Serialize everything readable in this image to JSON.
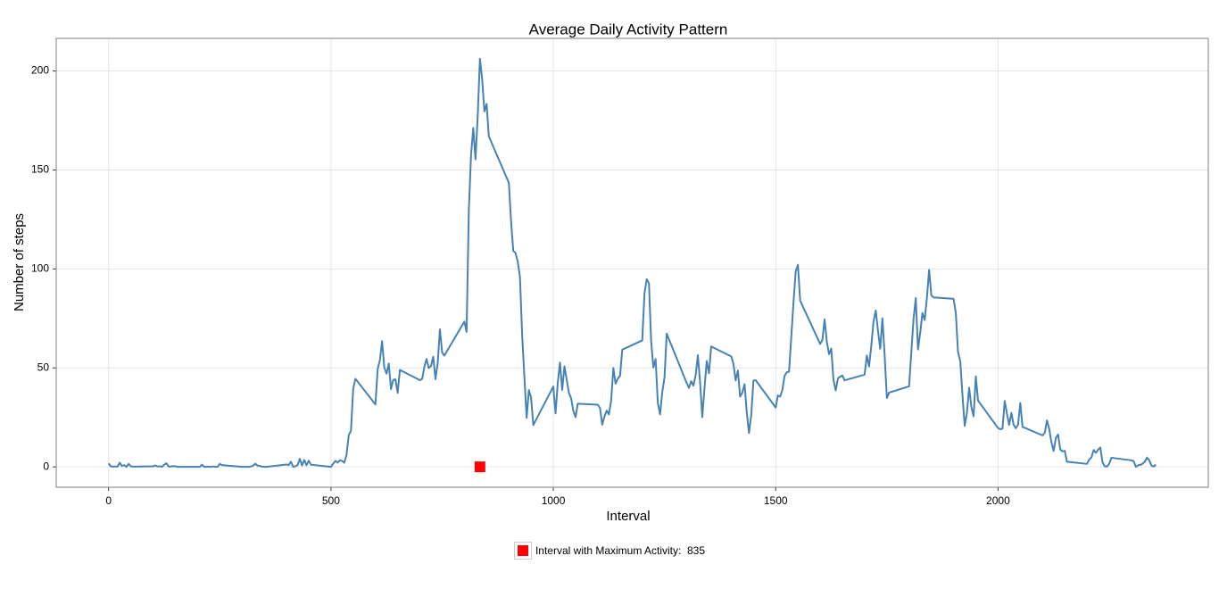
{
  "chart_data": {
    "type": "line",
    "title": "Average Daily Activity Pattern",
    "x_label": "Interval",
    "y_label": "Number of steps",
    "x": [
      0,
      5,
      10,
      15,
      20,
      25,
      30,
      35,
      40,
      45,
      50,
      55,
      100,
      105,
      110,
      115,
      120,
      125,
      130,
      135,
      140,
      145,
      150,
      155,
      200,
      205,
      210,
      215,
      220,
      225,
      230,
      235,
      240,
      245,
      250,
      255,
      300,
      305,
      310,
      315,
      320,
      325,
      330,
      335,
      340,
      345,
      350,
      355,
      400,
      405,
      410,
      415,
      420,
      425,
      430,
      435,
      440,
      445,
      450,
      455,
      500,
      505,
      510,
      515,
      520,
      525,
      530,
      535,
      540,
      545,
      550,
      555,
      600,
      605,
      610,
      615,
      620,
      625,
      630,
      635,
      640,
      645,
      650,
      655,
      700,
      705,
      710,
      715,
      720,
      725,
      730,
      735,
      740,
      745,
      750,
      755,
      800,
      805,
      810,
      815,
      820,
      825,
      830,
      835,
      840,
      845,
      850,
      855,
      900,
      905,
      910,
      915,
      920,
      925,
      930,
      935,
      940,
      945,
      950,
      955,
      1000,
      1005,
      1010,
      1015,
      1020,
      1025,
      1030,
      1035,
      1040,
      1045,
      1050,
      1055,
      1100,
      1105,
      1110,
      1115,
      1120,
      1125,
      1130,
      1135,
      1140,
      1145,
      1150,
      1155,
      1200,
      1205,
      1210,
      1215,
      1220,
      1225,
      1230,
      1235,
      1240,
      1245,
      1250,
      1255,
      1300,
      1305,
      1310,
      1315,
      1320,
      1325,
      1330,
      1335,
      1340,
      1345,
      1350,
      1355,
      1400,
      1405,
      1410,
      1415,
      1420,
      1425,
      1430,
      1435,
      1440,
      1445,
      1450,
      1455,
      1500,
      1505,
      1510,
      1515,
      1520,
      1525,
      1530,
      1535,
      1540,
      1545,
      1550,
      1555,
      1600,
      1605,
      1610,
      1615,
      1620,
      1625,
      1630,
      1635,
      1640,
      1645,
      1650,
      1655,
      1700,
      1705,
      1710,
      1715,
      1720,
      1725,
      1730,
      1735,
      1740,
      1745,
      1750,
      1755,
      1800,
      1805,
      1810,
      1815,
      1820,
      1825,
      1830,
      1835,
      1840,
      1845,
      1850,
      1855,
      1900,
      1905,
      1910,
      1915,
      1920,
      1925,
      1930,
      1935,
      1940,
      1945,
      1950,
      1955,
      2000,
      2005,
      2010,
      2015,
      2020,
      2025,
      2030,
      2035,
      2040,
      2045,
      2050,
      2055,
      2100,
      2105,
      2110,
      2115,
      2120,
      2125,
      2130,
      2135,
      2140,
      2145,
      2150,
      2155,
      2200,
      2205,
      2210,
      2215,
      2220,
      2225,
      2230,
      2235,
      2240,
      2245,
      2250,
      2255,
      2300,
      2305,
      2310,
      2315,
      2320,
      2325,
      2330,
      2335,
      2340,
      2345,
      2350,
      2355
    ],
    "series": [
      {
        "color": "#4682b4",
        "values": [
          1.7,
          0.3,
          0.1,
          0.2,
          0.1,
          2.1,
          0.5,
          0.9,
          0,
          1.5,
          0.3,
          0.1,
          0.3,
          0.7,
          0.2,
          0.3,
          0,
          1.1,
          1.8,
          0.2,
          0.2,
          0.4,
          0.3,
          0,
          0,
          0,
          1.1,
          0,
          0,
          0.1,
          0,
          0.2,
          0,
          0,
          1.5,
          0.9,
          0,
          0,
          0,
          0,
          0.2,
          0.6,
          1.6,
          0.6,
          0.5,
          0.1,
          0,
          0,
          1.2,
          0.9,
          2.6,
          0,
          0.3,
          0.9,
          4.1,
          0.7,
          3.5,
          0.8,
          3.1,
          1.1,
          0,
          1.6,
          3.0,
          2.2,
          3.3,
          3,
          2.1,
          6.1,
          16,
          18.3,
          39.4,
          44.5,
          31.5,
          49.3,
          53.8,
          63.5,
          50,
          47.1,
          52.2,
          39.3,
          44.0,
          44.2,
          37.4,
          49.0,
          43.8,
          44.4,
          50.5,
          54.5,
          49.9,
          51,
          55.7,
          44.3,
          52.3,
          69.5,
          57.8,
          56.2,
          73.4,
          68.2,
          129.4,
          157.5,
          171.2,
          155.4,
          177.3,
          206.2,
          195.9,
          179.6,
          183.4,
          167.0,
          143.5,
          124.0,
          109.1,
          108.1,
          103.7,
          95.9,
          66.2,
          45.2,
          24.8,
          38.8,
          35.0,
          21.1,
          40.6,
          27,
          42.4,
          52.7,
          38.9,
          50.8,
          44.3,
          37.4,
          34.7,
          28.3,
          25.1,
          31.9,
          31.4,
          29.7,
          21.3,
          25.5,
          28.4,
          26.5,
          33.4,
          50.0,
          42,
          44.6,
          46.0,
          59.2,
          63.9,
          87.7,
          94.8,
          92.8,
          63.4,
          50.2,
          54.5,
          32.4,
          26.5,
          37.7,
          45.1,
          67.3,
          42.3,
          39.9,
          43.3,
          41.0,
          46.2,
          56.4,
          42.8,
          25.1,
          40.0,
          53.5,
          47.3,
          60.8,
          55.8,
          52.0,
          43.6,
          48.7,
          35.5,
          37.5,
          41.8,
          27.5,
          17.1,
          26.1,
          43.6,
          43.8,
          30.0,
          36.1,
          35.5,
          38.8,
          46.0,
          47.8,
          48.1,
          65.3,
          82.9,
          98.7,
          102.1,
          84.0,
          62.1,
          64.1,
          74.5,
          63.2,
          56.9,
          59.8,
          43.9,
          38.6,
          44.7,
          45.5,
          46.2,
          43.7,
          46.6,
          56.3,
          50.7,
          61.2,
          73.4,
          79.0,
          68.9,
          59.7,
          75.1,
          56.5,
          34.8,
          37.5,
          40.7,
          58.0,
          74.7,
          85.3,
          59.3,
          67.8,
          77.7,
          74.2,
          85.3,
          99.5,
          86.6,
          85.6,
          84.9,
          77.8,
          58.0,
          53.4,
          36.3,
          20.7,
          27.4,
          40.0,
          30.2,
          25.5,
          45.7,
          33.5,
          19.6,
          19.0,
          19.3,
          33.3,
          26.8,
          21.2,
          27.3,
          21.3,
          19.5,
          21.3,
          32.3,
          20.2,
          15.9,
          17.2,
          23.5,
          19.2,
          12.5,
          8.0,
          14.7,
          16.3,
          8.7,
          7.8,
          8.1,
          2.6,
          1.5,
          3.7,
          4.8,
          8.5,
          7.1,
          8.7,
          9.8,
          2.2,
          0.3,
          0.1,
          1.6,
          4.6,
          3.3,
          2.8,
          0,
          0.8,
          1.0,
          1.6,
          2.6,
          4.7,
          3.3,
          0.6,
          0.2,
          1.1
        ]
      }
    ],
    "highlight": {
      "name": "Interval with Maximum Activity:  835",
      "x": 835,
      "y": 0,
      "color": "#ff0000"
    },
    "legend_position": "bottom",
    "xlim": [
      -117.75,
      2472.75
    ],
    "xticks": [
      0,
      500,
      1000,
      1500,
      2000
    ],
    "ylim": [
      -10.31,
      216.48
    ],
    "yticks": [
      0,
      50,
      100,
      150,
      200
    ],
    "grid": true
  }
}
